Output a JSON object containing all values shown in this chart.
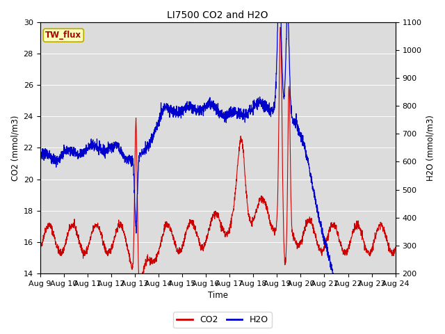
{
  "title": "LI7500 CO2 and H2O",
  "xlabel": "Time",
  "ylabel_left": "CO2 (mmol/m3)",
  "ylabel_right": "H2O (mmol/m3)",
  "ylim_left": [
    14,
    30
  ],
  "ylim_right": [
    200,
    1100
  ],
  "co2_color": "#cc0000",
  "h2o_color": "#0000cc",
  "bg_color": "#dcdcdc",
  "legend_labels": [
    "CO2",
    "H2O"
  ],
  "site_label": "TW_flux",
  "x_tick_labels": [
    "Aug 9",
    "Aug 10",
    "Aug 11",
    "Aug 12",
    "Aug 13",
    "Aug 14",
    "Aug 15",
    "Aug 16",
    "Aug 17",
    "Aug 18",
    "Aug 19",
    "Aug 20",
    "Aug 21",
    "Aug 22",
    "Aug 23",
    "Aug 24"
  ],
  "n_days": 15,
  "pts_per_day": 144
}
